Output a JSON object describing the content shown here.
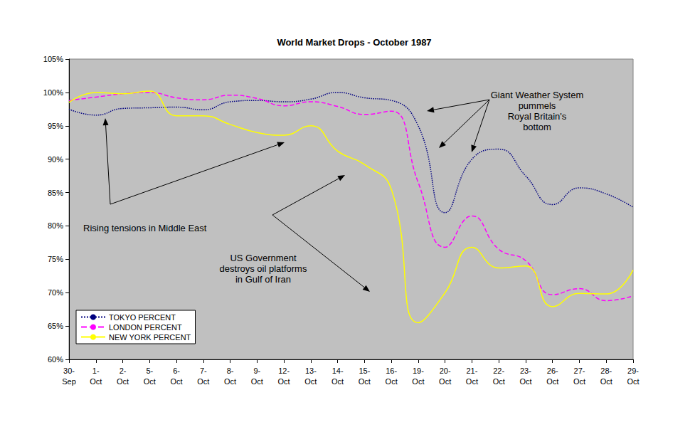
{
  "chart_data": {
    "type": "line",
    "title": "World Market Drops - October 1987",
    "categories": [
      "30-Sep",
      "1-Oct",
      "2-Oct",
      "5-Oct",
      "6-Oct",
      "7-Oct",
      "8-Oct",
      "9-Oct",
      "12-Oct",
      "13-Oct",
      "14-Oct",
      "15-Oct",
      "16-Oct",
      "19-Oct",
      "20-Oct",
      "21-Oct",
      "22-Oct",
      "23-Oct",
      "26-Oct",
      "27-Oct",
      "28-Oct",
      "29-Oct"
    ],
    "series": [
      {
        "name": "TOKYO PERCENT",
        "color": "#000080",
        "line_style": "dotted",
        "values": [
          97.5,
          96.6,
          97.6,
          97.7,
          97.8,
          97.4,
          98.6,
          98.8,
          98.6,
          99.0,
          100.0,
          99.2,
          98.8,
          95.0,
          82.0,
          90.0,
          91.5,
          87.5,
          83.2,
          85.7,
          84.8,
          82.8
        ]
      },
      {
        "name": "LONDON PERCENT",
        "color": "#ff00ff",
        "line_style": "dashed",
        "values": [
          98.8,
          99.3,
          99.8,
          100.0,
          99.2,
          98.9,
          99.6,
          99.1,
          98.0,
          98.6,
          97.9,
          96.7,
          97.2,
          86.5,
          76.8,
          81.5,
          76.5,
          74.8,
          69.7,
          70.6,
          68.8,
          69.5
        ]
      },
      {
        "name": "NEW YORK PERCENT",
        "color": "#ffff00",
        "line_style": "solid",
        "values": [
          98.5,
          100.0,
          99.8,
          100.2,
          96.5,
          96.5,
          95.2,
          94.0,
          93.6,
          95.0,
          91.2,
          89.2,
          85.5,
          65.5,
          70.0,
          76.8,
          73.7,
          74.0,
          67.9,
          69.9,
          69.8,
          73.4
        ]
      }
    ],
    "ylim": [
      60,
      105
    ],
    "yticks": [
      {
        "value": 60,
        "label": "60%"
      },
      {
        "value": 65,
        "label": "65%"
      },
      {
        "value": 70,
        "label": "70%"
      },
      {
        "value": 75,
        "label": "75%"
      },
      {
        "value": 80,
        "label": "80%"
      },
      {
        "value": 85,
        "label": "85%"
      },
      {
        "value": 90,
        "label": "90%"
      },
      {
        "value": 95,
        "label": "95%"
      },
      {
        "value": 100,
        "label": "100%"
      },
      {
        "value": 105,
        "label": "105%"
      }
    ],
    "grid": false,
    "legend": "lower left",
    "annotations": [
      {
        "text": "Giant Weather System\npummels\nRoyal Britain's\nbottom"
      },
      {
        "text": "Rising tensions in Middle East"
      },
      {
        "text": "US Government\ndestroys oil platforms\nin Gulf of Iran"
      }
    ]
  }
}
